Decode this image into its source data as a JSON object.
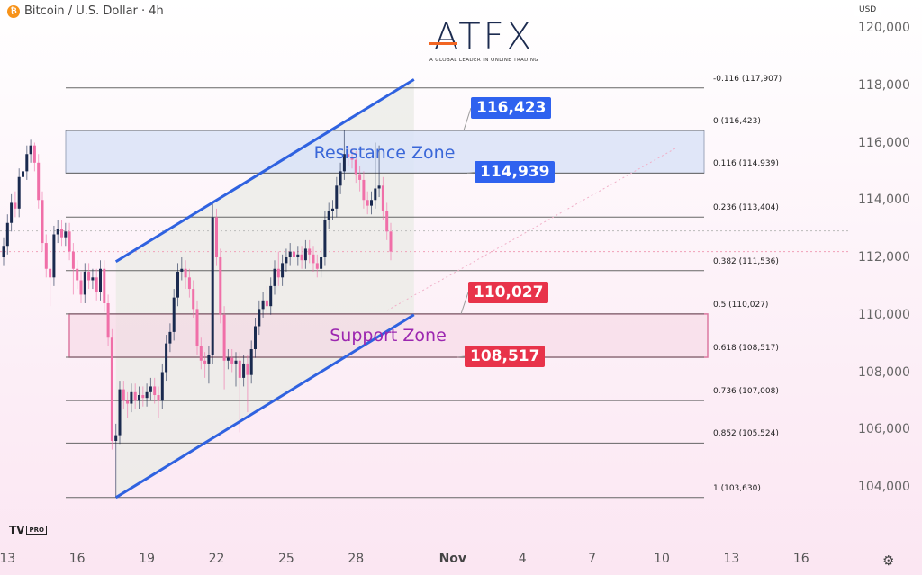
{
  "header": {
    "symbol_title": "Bitcoin / U.S. Dollar · 4h",
    "symbol_icon": "bitcoin-icon",
    "currency": "USD"
  },
  "logo": {
    "text": "ATFX",
    "tagline": "A GLOBAL LEADER IN ONLINE TRADING"
  },
  "branding": {
    "badge": "TV",
    "badge_suffix": "PRO"
  },
  "colors": {
    "bull": "#1a2a4f",
    "bear": "#f06fa8",
    "channel": "#2f62e0",
    "resistance_text": "#3a67d8",
    "support_text": "#9c27b0",
    "label_blue": "#2f62ef",
    "label_red": "#e8334a",
    "support_border": "#c2185b"
  },
  "chart_data": {
    "type": "candlestick",
    "ylim": [
      102500,
      120800
    ],
    "y_ticks": [
      "120,000",
      "118,000",
      "116,000",
      "114,000",
      "112,000",
      "110,000",
      "108,000",
      "106,000",
      "104,000"
    ],
    "y_tick_values": [
      120000,
      118000,
      116000,
      114000,
      112000,
      110000,
      108000,
      106000,
      104000
    ],
    "x_ticks": [
      {
        "label": "13",
        "candle": 1
      },
      {
        "label": "16",
        "candle": 19
      },
      {
        "label": "19",
        "candle": 37
      },
      {
        "label": "22",
        "candle": 55
      },
      {
        "label": "25",
        "candle": 73
      },
      {
        "label": "28",
        "candle": 91
      },
      {
        "label": "Nov",
        "candle": 116,
        "bold": true
      },
      {
        "label": "4",
        "candle": 134
      },
      {
        "label": "7",
        "candle": 152
      },
      {
        "label": "10",
        "candle": 170
      },
      {
        "label": "13",
        "candle": 188
      },
      {
        "label": "16",
        "candle": 206
      }
    ],
    "candles_ohlc": [
      [
        112000,
        112700,
        111700,
        112400
      ],
      [
        112400,
        113500,
        112100,
        113200
      ],
      [
        113200,
        114200,
        112900,
        113900
      ],
      [
        113900,
        114300,
        113400,
        113700
      ],
      [
        113700,
        115100,
        113400,
        114800
      ],
      [
        114800,
        115700,
        114500,
        115000
      ],
      [
        115000,
        115900,
        114700,
        115600
      ],
      [
        115600,
        116100,
        115300,
        115900
      ],
      [
        115900,
        116000,
        115000,
        115300
      ],
      [
        115300,
        115600,
        113700,
        114000
      ],
      [
        114000,
        114300,
        112200,
        112500
      ],
      [
        112500,
        112800,
        111300,
        111600
      ],
      [
        111600,
        111900,
        110300,
        111300
      ],
      [
        111300,
        113100,
        111000,
        112800
      ],
      [
        112800,
        113300,
        112500,
        113000
      ],
      [
        113000,
        113300,
        112400,
        112700
      ],
      [
        112700,
        113200,
        112400,
        112900
      ],
      [
        112900,
        113200,
        111900,
        112200
      ],
      [
        112200,
        112500,
        110700,
        111600
      ],
      [
        111600,
        111900,
        110900,
        111200
      ],
      [
        111200,
        111500,
        110400,
        110700
      ],
      [
        110700,
        111800,
        110400,
        111500
      ],
      [
        111500,
        111800,
        110900,
        111200
      ],
      [
        111200,
        111600,
        110900,
        111300
      ],
      [
        111300,
        111600,
        110500,
        110800
      ],
      [
        110800,
        111900,
        110500,
        111600
      ],
      [
        111600,
        111900,
        110100,
        110400
      ],
      [
        110400,
        110700,
        108900,
        109200
      ],
      [
        109200,
        109500,
        105300,
        105600
      ],
      [
        105600,
        106200,
        103630,
        105800
      ],
      [
        105800,
        107700,
        105500,
        107400
      ],
      [
        107400,
        107700,
        106700,
        107000
      ],
      [
        107000,
        107300,
        106400,
        106900
      ],
      [
        106900,
        107600,
        106600,
        107300
      ],
      [
        107300,
        107600,
        106700,
        107000
      ],
      [
        107000,
        107500,
        106700,
        107200
      ],
      [
        107200,
        107500,
        106800,
        107100
      ],
      [
        107100,
        107600,
        106800,
        107300
      ],
      [
        107300,
        107800,
        107000,
        107500
      ],
      [
        107500,
        107800,
        106900,
        107200
      ],
      [
        107200,
        107500,
        106400,
        107000
      ],
      [
        107000,
        108300,
        106700,
        108000
      ],
      [
        108000,
        109300,
        107700,
        109000
      ],
      [
        109000,
        109700,
        108700,
        109400
      ],
      [
        109400,
        110900,
        109100,
        110600
      ],
      [
        110600,
        111800,
        110300,
        111500
      ],
      [
        111500,
        112000,
        111200,
        111600
      ],
      [
        111600,
        111900,
        110900,
        111300
      ],
      [
        111300,
        111600,
        110600,
        110900
      ],
      [
        110900,
        111200,
        109900,
        110200
      ],
      [
        110200,
        110500,
        108600,
        108900
      ],
      [
        108900,
        109200,
        108100,
        108400
      ],
      [
        108400,
        108700,
        107800,
        108300
      ],
      [
        108300,
        108900,
        107600,
        108600
      ],
      [
        108600,
        113900,
        108300,
        113400
      ],
      [
        113400,
        113700,
        111700,
        112000
      ],
      [
        112000,
        112300,
        109700,
        110000
      ],
      [
        110000,
        110300,
        107400,
        108400
      ],
      [
        108400,
        108800,
        108100,
        108500
      ],
      [
        108500,
        108800,
        108000,
        108300
      ],
      [
        108300,
        108700,
        107500,
        108400
      ],
      [
        108400,
        108700,
        105900,
        107800
      ],
      [
        107800,
        108600,
        107500,
        108300
      ],
      [
        108300,
        108600,
        106600,
        107900
      ],
      [
        107900,
        109100,
        107600,
        108800
      ],
      [
        108800,
        109900,
        108500,
        109600
      ],
      [
        109600,
        110500,
        109300,
        110200
      ],
      [
        110200,
        110800,
        109900,
        110500
      ],
      [
        110500,
        111000,
        110000,
        110300
      ],
      [
        110300,
        111300,
        110000,
        111000
      ],
      [
        111000,
        111900,
        110700,
        111600
      ],
      [
        111600,
        112200,
        111000,
        111300
      ],
      [
        111300,
        112100,
        111000,
        111800
      ],
      [
        111800,
        112300,
        111500,
        112000
      ],
      [
        112000,
        112500,
        111700,
        112200
      ],
      [
        112200,
        112500,
        111700,
        112000
      ],
      [
        112000,
        112400,
        111700,
        112100
      ],
      [
        112100,
        112400,
        111600,
        111900
      ],
      [
        111900,
        112600,
        111600,
        112300
      ],
      [
        112300,
        112600,
        111800,
        112100
      ],
      [
        112100,
        112400,
        111500,
        111800
      ],
      [
        111800,
        112100,
        111300,
        111600
      ],
      [
        111600,
        112300,
        111300,
        112000
      ],
      [
        112000,
        113600,
        111700,
        113300
      ],
      [
        113300,
        113900,
        113000,
        113600
      ],
      [
        113600,
        114000,
        113300,
        113700
      ],
      [
        113700,
        114800,
        113400,
        114500
      ],
      [
        114500,
        115300,
        114200,
        115000
      ],
      [
        115000,
        116423,
        114700,
        115600
      ],
      [
        115600,
        115900,
        115200,
        115500
      ],
      [
        115500,
        115800,
        115100,
        115400
      ],
      [
        115400,
        115700,
        114600,
        114900
      ],
      [
        114900,
        115200,
        114300,
        114700
      ],
      [
        114700,
        115000,
        113700,
        114000
      ],
      [
        114000,
        114300,
        113500,
        113800
      ],
      [
        113800,
        114300,
        113500,
        114000
      ],
      [
        114000,
        116000,
        113700,
        114400
      ],
      [
        114400,
        115900,
        114100,
        114500
      ],
      [
        114500,
        114800,
        113300,
        113600
      ],
      [
        113600,
        113900,
        112600,
        112900
      ],
      [
        112900,
        113200,
        111900,
        112200
      ]
    ],
    "fib_levels": [
      {
        "ratio": "-0.116",
        "price": 117907,
        "label": "-0.116 (117,907)"
      },
      {
        "ratio": "0",
        "price": 116423,
        "label": "0 (116,423)"
      },
      {
        "ratio": "0.116",
        "price": 114939,
        "label": "0.116 (114,939)"
      },
      {
        "ratio": "0.236",
        "price": 113404,
        "label": "0.236 (113,404)"
      },
      {
        "ratio": "0.382",
        "price": 111536,
        "label": "0.382 (111,536)"
      },
      {
        "ratio": "0.5",
        "price": 110027,
        "label": "0.5 (110,027)"
      },
      {
        "ratio": "0.618",
        "price": 108517,
        "label": "0.618 (108,517)"
      },
      {
        "ratio": "0.736",
        "price": 107008,
        "label": "0.736 (107,008)"
      },
      {
        "ratio": "0.852",
        "price": 105524,
        "label": "0.852 (105,524)"
      },
      {
        "ratio": "1",
        "price": 103630,
        "label": "1 (103,630)"
      }
    ],
    "zones": {
      "resistance": {
        "label": "Resistance Zone",
        "top": 116423,
        "bottom": 114939
      },
      "support": {
        "label": "Support Zone",
        "top": 110027,
        "bottom": 108517
      }
    },
    "price_labels": [
      {
        "text": "116,423",
        "price": 116423,
        "type": "resistance"
      },
      {
        "text": "114,939",
        "price": 114939,
        "type": "resistance"
      },
      {
        "text": "110,027",
        "price": 110027,
        "type": "support"
      },
      {
        "text": "108,517",
        "price": 108517,
        "type": "support"
      }
    ],
    "channel": {
      "upper": [
        {
          "candle": 29,
          "price": 111850
        },
        {
          "candle": 106,
          "price": 118200
        }
      ],
      "lower": [
        {
          "candle": 29,
          "price": 103630
        },
        {
          "candle": 106,
          "price": 110000
        }
      ]
    },
    "last_price": 112200
  }
}
